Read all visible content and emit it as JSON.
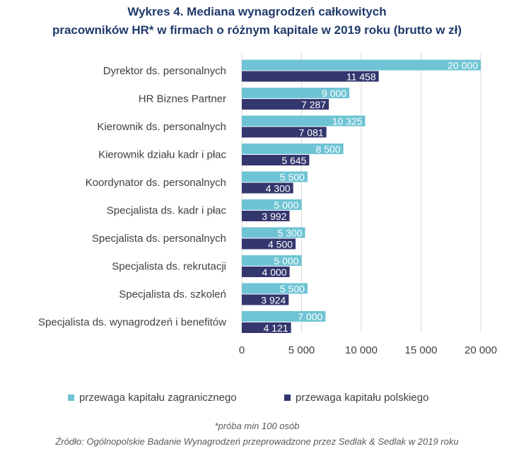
{
  "chart_data": {
    "type": "bar",
    "orientation": "horizontal",
    "title_lines": [
      "Wykres 4. Mediana wynagrodzeń całkowitych",
      "pracowników HR* w firmach o różnym kapitale w 2019 roku (brutto w zł)"
    ],
    "categories": [
      "Dyrektor ds. personalnych",
      "HR Biznes Partner",
      "Kierownik ds. personalnych",
      "Kierownik działu kadr i płac",
      "Koordynator ds. personalnych",
      "Specjalista ds. kadr i płac",
      "Specjalista ds. personalnych",
      "Specjalista ds. rekrutacji",
      "Specjalista ds. szkoleń",
      "Specjalista ds. wynagrodzeń i benefitów"
    ],
    "series": [
      {
        "name": "przewaga kapitału zagranicznego",
        "color": "#6ec4d4",
        "values": [
          20000,
          9000,
          10325,
          8500,
          5500,
          5000,
          5300,
          5000,
          5500,
          7000
        ],
        "labels": [
          "20 000",
          "9 000",
          "10 325",
          "8 500",
          "5 500",
          "5 000",
          "5 300",
          "5 000",
          "5 500",
          "7 000"
        ]
      },
      {
        "name": "przewaga kapitału polskiego",
        "color": "#34366e",
        "values": [
          11458,
          7287,
          7081,
          5645,
          4300,
          3992,
          4500,
          4000,
          3924,
          4121
        ],
        "labels": [
          "11 458",
          "7 287",
          "7 081",
          "5 645",
          "4 300",
          "3 992",
          "4 500",
          "4 000",
          "3 924",
          "4 121"
        ]
      }
    ],
    "xlim": [
      0,
      20000
    ],
    "xticks": [
      0,
      5000,
      10000,
      15000,
      20000
    ],
    "xtick_labels": [
      "0",
      "5 000",
      "10 000",
      "15 000",
      "20 000"
    ],
    "grid": true,
    "legend_position": "bottom"
  },
  "footnote": "*próba min 100 osób",
  "source": "Źródło: Ogólnopolskie Badanie Wynagrodzeń przeprowadzone przez Sedlak & Sedlak w 2019 roku"
}
